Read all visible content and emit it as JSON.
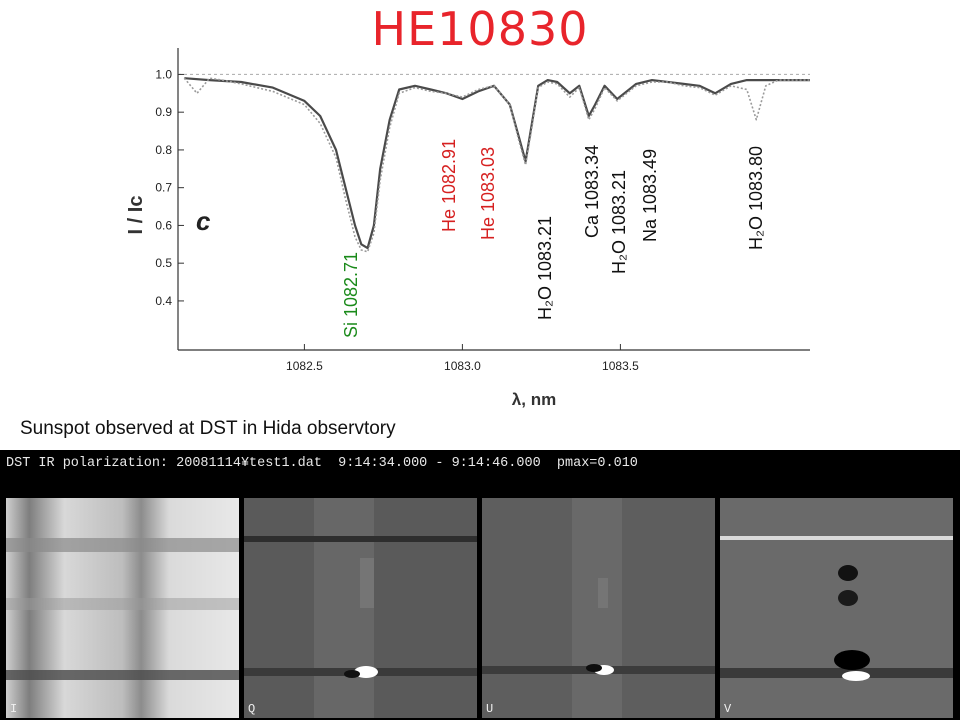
{
  "slide_title": "HE10830",
  "caption": "Sunspot observed at DST in Hida observtory",
  "observation": {
    "header": "DST IR polarization: 20081114¥test1.dat  9:14:34.000 - 9:14:46.000  pmax=0.010",
    "panels": [
      {
        "label": "I",
        "name": "stokes-i-panel"
      },
      {
        "label": "Q",
        "name": "stokes-q-panel"
      },
      {
        "label": "U",
        "name": "stokes-u-panel"
      },
      {
        "label": "V",
        "name": "stokes-v-panel"
      }
    ]
  },
  "chart_data": {
    "type": "line",
    "panel_letter": "c",
    "xlabel": "λ, nm",
    "ylabel": "I / Ic",
    "xlim": [
      1082.1,
      1084.1
    ],
    "ylim": [
      0.27,
      1.07
    ],
    "xticks": [
      1082.5,
      1083.0,
      1083.5
    ],
    "xtick_labels": [
      "1082.5",
      "1083.0",
      "1083.5"
    ],
    "yticks": [
      0.4,
      0.5,
      0.6,
      0.7,
      0.8,
      0.9,
      1.0
    ],
    "ytick_labels": [
      "0.4",
      "0.5",
      "0.6",
      "0.7",
      "0.8",
      "0.9",
      "1.0"
    ],
    "continuum_level": 1.0,
    "series": [
      {
        "style": "solid",
        "color": "#4a4a4a",
        "x": [
          1082.12,
          1082.2,
          1082.3,
          1082.4,
          1082.5,
          1082.55,
          1082.6,
          1082.63,
          1082.66,
          1082.68,
          1082.7,
          1082.72,
          1082.74,
          1082.77,
          1082.8,
          1082.85,
          1082.9,
          1082.95,
          1083.0,
          1083.05,
          1083.1,
          1083.15,
          1083.18,
          1083.2,
          1083.22,
          1083.24,
          1083.27,
          1083.3,
          1083.34,
          1083.37,
          1083.4,
          1083.42,
          1083.45,
          1083.49,
          1083.55,
          1083.6,
          1083.65,
          1083.7,
          1083.75,
          1083.8,
          1083.85,
          1083.9,
          1083.95,
          1084.0,
          1084.05,
          1084.1
        ],
        "y": [
          0.99,
          0.985,
          0.98,
          0.965,
          0.93,
          0.89,
          0.8,
          0.7,
          0.6,
          0.55,
          0.54,
          0.6,
          0.75,
          0.88,
          0.96,
          0.97,
          0.96,
          0.95,
          0.935,
          0.955,
          0.97,
          0.92,
          0.83,
          0.77,
          0.87,
          0.97,
          0.985,
          0.98,
          0.95,
          0.97,
          0.89,
          0.92,
          0.97,
          0.935,
          0.975,
          0.985,
          0.98,
          0.975,
          0.97,
          0.95,
          0.975,
          0.985,
          0.985,
          0.985,
          0.985,
          0.985
        ]
      },
      {
        "style": "dotted",
        "color": "#9a9a9a",
        "x": [
          1082.12,
          1082.16,
          1082.2,
          1082.24,
          1082.3,
          1082.4,
          1082.5,
          1082.55,
          1082.6,
          1082.63,
          1082.66,
          1082.68,
          1082.7,
          1082.72,
          1082.74,
          1082.77,
          1082.8,
          1082.85,
          1082.9,
          1082.95,
          1083.0,
          1083.05,
          1083.1,
          1083.15,
          1083.18,
          1083.2,
          1083.22,
          1083.24,
          1083.27,
          1083.3,
          1083.34,
          1083.37,
          1083.4,
          1083.42,
          1083.45,
          1083.49,
          1083.55,
          1083.6,
          1083.65,
          1083.7,
          1083.75,
          1083.8,
          1083.85,
          1083.9,
          1083.93,
          1083.96,
          1084.0,
          1084.05,
          1084.1
        ],
        "y": [
          0.99,
          0.95,
          0.99,
          0.985,
          0.975,
          0.955,
          0.92,
          0.87,
          0.78,
          0.67,
          0.57,
          0.535,
          0.53,
          0.58,
          0.72,
          0.86,
          0.95,
          0.965,
          0.955,
          0.95,
          0.94,
          0.96,
          0.97,
          0.92,
          0.82,
          0.76,
          0.86,
          0.965,
          0.98,
          0.975,
          0.94,
          0.965,
          0.88,
          0.91,
          0.965,
          0.93,
          0.97,
          0.98,
          0.98,
          0.97,
          0.965,
          0.945,
          0.97,
          0.96,
          0.88,
          0.97,
          0.985,
          0.985,
          0.985
        ]
      }
    ],
    "annotations": [
      {
        "text": "Si 1082.71",
        "color": "#1a8a1a"
      },
      {
        "text": "He  1082.91",
        "color": "#d62020"
      },
      {
        "text": "He 1083.03",
        "color": "#d62020"
      },
      {
        "text": "H₂O 1083.21",
        "color": "#111111"
      },
      {
        "text": "Ca 1083.34",
        "color": "#111111"
      },
      {
        "text": "H₂O 1083.21",
        "color": "#111111"
      },
      {
        "text": "Na 1083.49",
        "color": "#111111"
      },
      {
        "text": "H₂O 1083.80",
        "color": "#111111"
      }
    ]
  }
}
